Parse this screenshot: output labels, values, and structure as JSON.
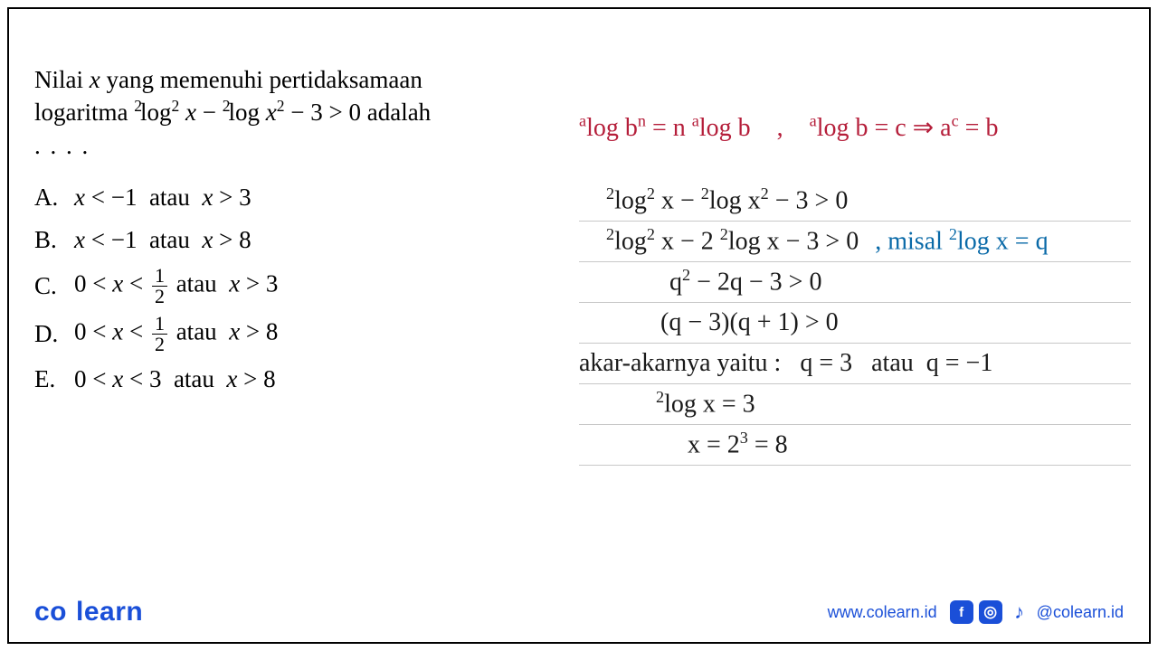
{
  "question": {
    "line1": "Nilai  <span class='italic'>x</span>  yang  memenuhi  pertidaksamaan",
    "line2": "logaritma <span class='presup'>2</span>log<sup>2</sup> <span class='italic'>x</span> − <span class='presup'>2</span>log <span class='italic'>x</span><sup>2</sup> − 3 &gt; 0 adalah",
    "dots": ". . . ."
  },
  "options": {
    "A": "<span class='italic'>x</span> &lt; −1&nbsp; atau&nbsp; <span class='italic'>x</span> &gt; 3",
    "B": "<span class='italic'>x</span> &lt; −1&nbsp; atau&nbsp; <span class='italic'>x</span> &gt; 8",
    "C": "0 &lt; <span class='italic'>x</span> &lt; <span class='frac'><span class='num'>1</span><span class='den'>2</span></span> atau&nbsp; <span class='italic'>x</span> &gt; 3",
    "D": "0 &lt; <span class='italic'>x</span> &lt; <span class='frac'><span class='num'>1</span><span class='den'>2</span></span> atau&nbsp; <span class='italic'>x</span> &gt; 8",
    "E": "0 &lt; <span class='italic'>x</span> &lt; 3&nbsp; atau&nbsp; <span class='italic'>x</span> &gt; 8"
  },
  "handwriting": {
    "formula_color": "#b51e3a",
    "work_color": "#1a1a1a",
    "note_color": "#0a6aa8",
    "formula_left": "<sup>a</sup>log b<sup>n</sup> = n <sup>a</sup>log b",
    "formula_right": "<sup>a</sup>log b = c  ⇒  a<sup>c</sup> = b",
    "formula_sep": ",",
    "lines": [
      {
        "text": "<sup>2</sup>log<sup>2</sup> x − <sup>2</sup>log x<sup>2</sup> − 3 &gt; 0",
        "indent": 0
      },
      {
        "text": "<sup>2</sup>log<sup>2</sup> x − 2 <sup>2</sup>log x − 3 &gt; 0",
        "note": ", misal <sup>2</sup>log x = q",
        "indent": 0
      },
      {
        "text": "q<sup>2</sup> − 2q − 3 &gt; 0",
        "indent": 70
      },
      {
        "text": "(q − 3)(q + 1) &gt; 0",
        "indent": 60
      },
      {
        "text": "akar-akarnya yaitu :&nbsp;&nbsp; q = 3&nbsp;&nbsp; atau&nbsp; q = −1",
        "indent": -30
      },
      {
        "text": "<sup>2</sup>log x = 3",
        "indent": 55
      },
      {
        "text": "x = 2<sup>3</sup> = 8",
        "indent": 90
      }
    ]
  },
  "footer": {
    "logo_left": "co",
    "logo_right": "learn",
    "url": "www.colearn.id",
    "handle": "@colearn.id",
    "brand_color": "#1a4fd8"
  }
}
